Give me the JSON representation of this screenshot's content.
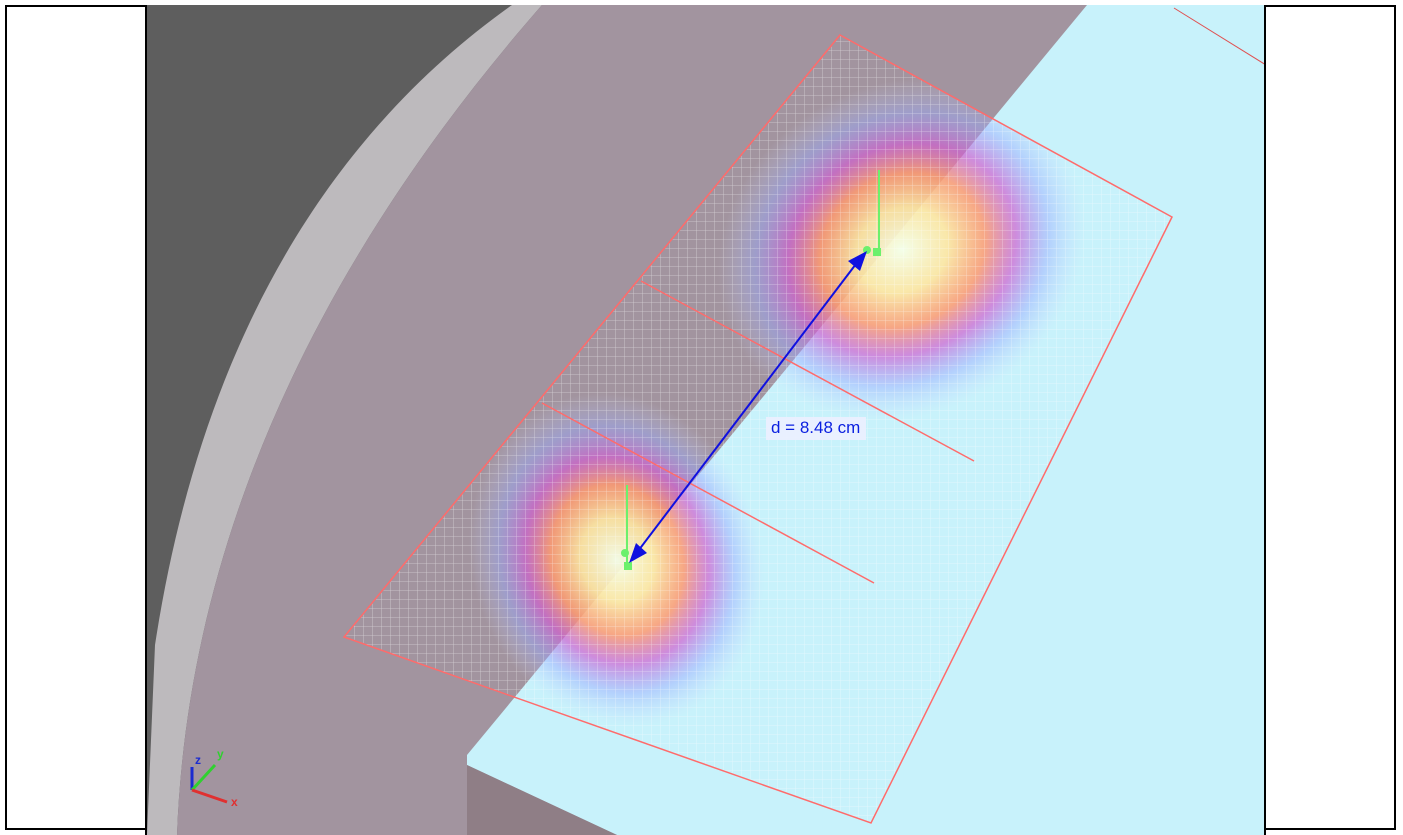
{
  "viewport": {
    "measurement_label": "d = 8.48 cm",
    "triad": {
      "z": "z",
      "y": "y",
      "x": "x"
    }
  },
  "colors": {
    "background_dark": "#5a5a5a",
    "cylinder_rim": "#b9b6b8",
    "phantom": "#a2949f",
    "substrate": "#c8f2fb",
    "mesh_border": "#ff6b6b",
    "measurement": "#1010e0",
    "marker": "#6cf06c"
  },
  "icons": [
    "coordinate-triad-icon",
    "marker-icon",
    "arrow-icon"
  ]
}
